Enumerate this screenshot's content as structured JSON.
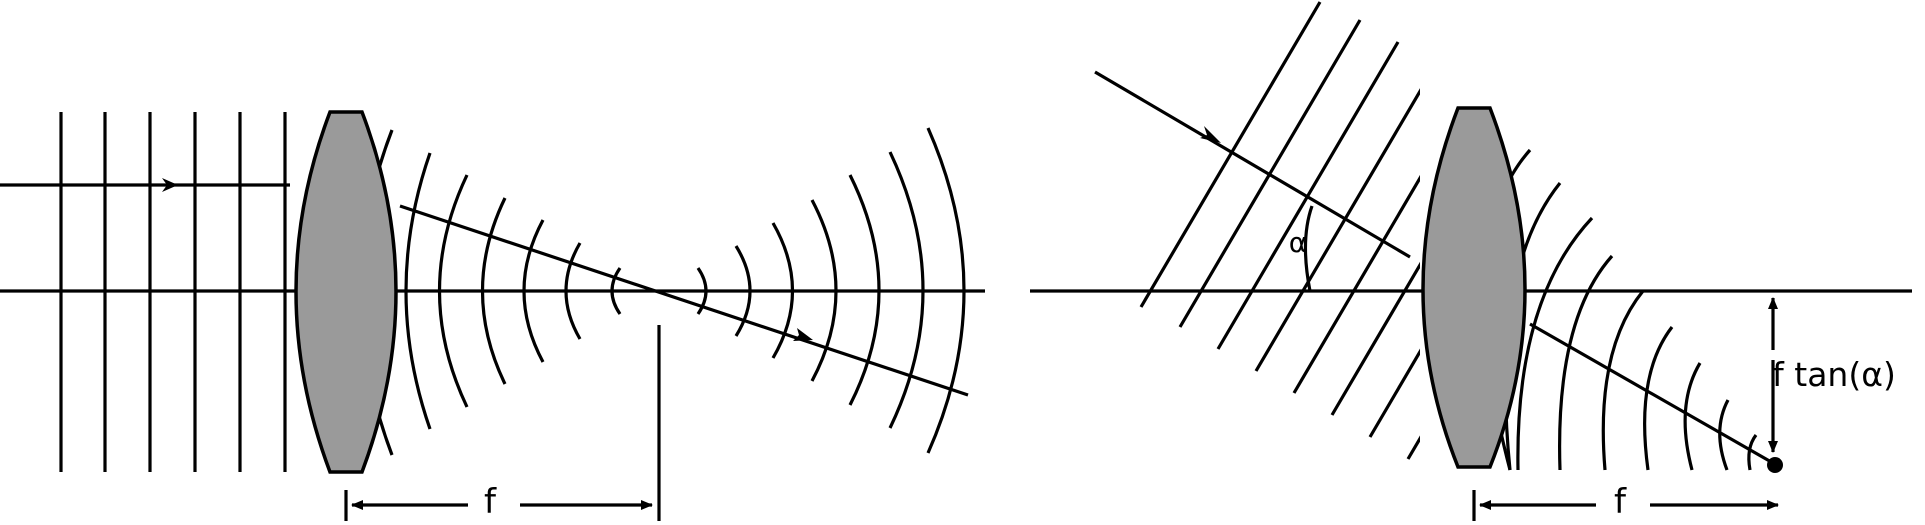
{
  "left_panel": {
    "focal_label": "f"
  },
  "right_panel": {
    "angle_label": "α",
    "focal_label": "f",
    "offset_label": "f tan(α)"
  }
}
